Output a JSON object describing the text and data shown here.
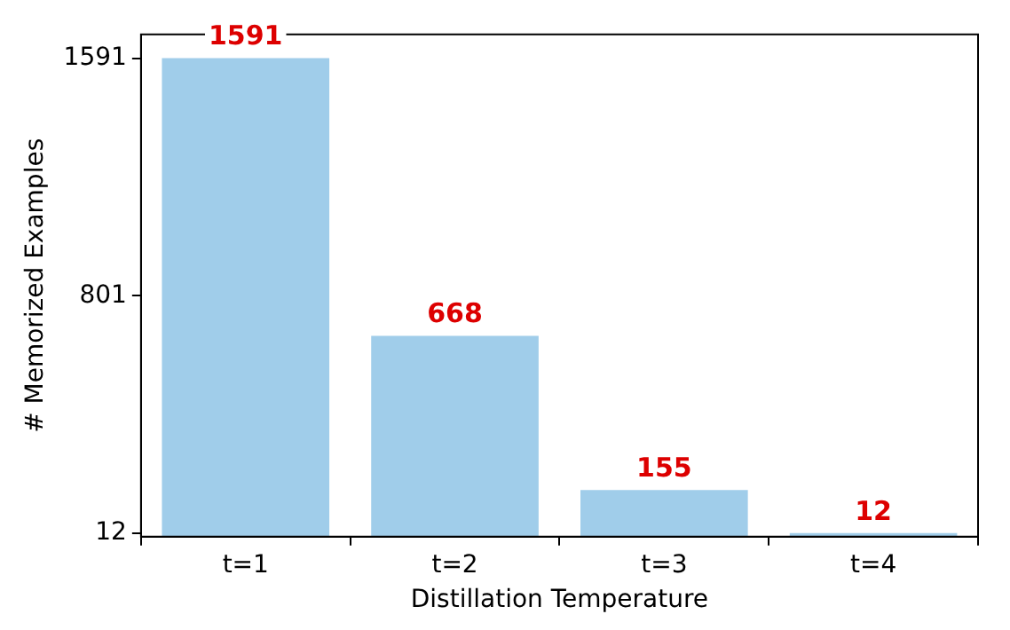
{
  "chart_data": {
    "type": "bar",
    "xlabel": "Distillation Temperature",
    "ylabel": "# Memorized Examples",
    "categories": [
      "t=1",
      "t=2",
      "t=3",
      "t=4"
    ],
    "values": [
      1591,
      668,
      155,
      12
    ],
    "color": "#a0cdea",
    "ylim": [
      0,
      1670
    ],
    "yticks": [
      12,
      801,
      1591
    ],
    "grid": false,
    "data_labels": true,
    "legend": false
  }
}
